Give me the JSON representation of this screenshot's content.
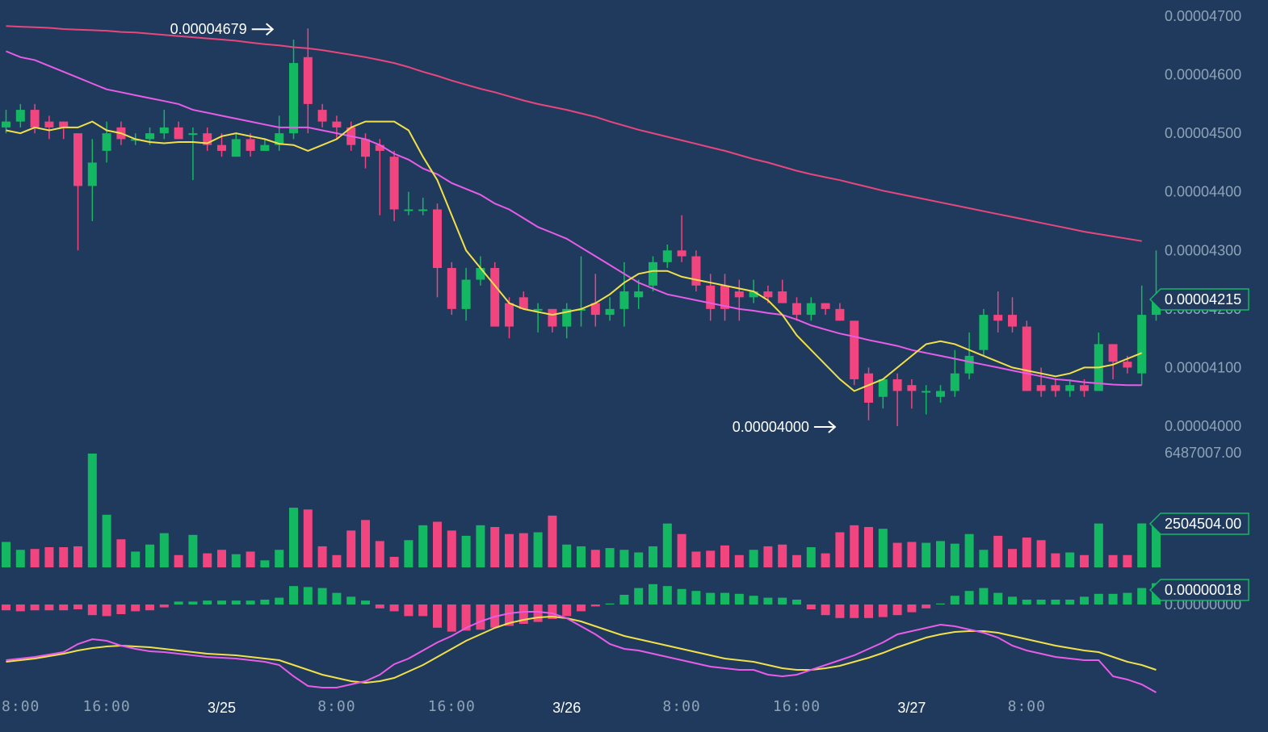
{
  "colors": {
    "background": "#1f3a5c",
    "up": "#14b863",
    "down": "#f0457f",
    "ma_fast": "#f2e04a",
    "ma_mid": "#e95ce8",
    "ma_slow": "#e8467c",
    "axis_text": "#8fa3b8",
    "tag_border": "#14b863",
    "tag_fill": "#1f3a5c",
    "stoch_k": "#e95ce8",
    "stoch_d": "#f2e04a"
  },
  "chart_data": {
    "type": "candlestick",
    "price_axis": {
      "ticks": [
        "0.00004700",
        "0.00004600",
        "0.00004500",
        "0.00004400",
        "0.00004300",
        "0.00004200",
        "0.00004100",
        "0.00004000"
      ],
      "tick_values": [
        4.7e-05,
        4.6e-05,
        4.5e-05,
        4.4e-05,
        4.3e-05,
        4.2e-05,
        4.1e-05,
        4e-05
      ],
      "range": [
        3.99e-05,
        4.72e-05
      ]
    },
    "time_axis": {
      "labels": [
        "8:00",
        "16:00",
        "3/25",
        "8:00",
        "16:00",
        "3/26",
        "8:00",
        "16:00",
        "3/27",
        "8:00"
      ],
      "bold": [
        false,
        false,
        true,
        false,
        false,
        true,
        false,
        false,
        true,
        false
      ],
      "candle_index": [
        -1,
        7,
        15,
        23,
        31,
        39,
        47,
        55,
        63,
        71
      ]
    },
    "annotations": {
      "high": {
        "label": "0.00004679",
        "candle_index": 19,
        "value": 4.679e-05
      },
      "low": {
        "label": "0.00004000",
        "candle_index": 58,
        "value": 4e-05
      }
    },
    "last_price_tag": {
      "label": "0.00004215",
      "value": 4.215e-05
    },
    "volume": {
      "max_label": "6487007.00",
      "max_value": 6487007,
      "last_tag": "2504504.00",
      "last_value": 2504504,
      "values": [
        1450000,
        1000000,
        1050000,
        1150000,
        1150000,
        1200000,
        6487007,
        3000000,
        1600000,
        900000,
        1300000,
        1950000,
        700000,
        1850000,
        800000,
        1000000,
        750000,
        900000,
        400000,
        1000000,
        3400000,
        3300000,
        1200000,
        700000,
        2100000,
        2700000,
        1500000,
        600000,
        1550000,
        2400000,
        2600000,
        2100000,
        1800000,
        2400000,
        2300000,
        1900000,
        1950000,
        2000000,
        2950000,
        1300000,
        1200000,
        1000000,
        1100000,
        1000000,
        850000,
        1200000,
        2500000,
        1900000,
        900000,
        950000,
        1250000,
        700000,
        1000000,
        1200000,
        1300000,
        700000,
        1150000,
        800000,
        2000000,
        2400000,
        2300000,
        2200000,
        1400000,
        1450000,
        1400000,
        1500000,
        1350000,
        1900000,
        1000000,
        1800000,
        1050000,
        1700000,
        1550000,
        800000,
        850000,
        700000,
        2500000,
        700000,
        700000,
        2504504,
        2504504
      ]
    },
    "macd": {
      "tag_label": "0.00000018",
      "tag_value": 1.8e-07,
      "zero_label": "0.00000000",
      "histogram": [
        -0.3,
        -0.35,
        -0.3,
        -0.3,
        -0.3,
        -0.25,
        -0.55,
        -0.6,
        -0.5,
        -0.35,
        -0.3,
        -0.15,
        0.15,
        0.15,
        0.2,
        0.2,
        0.2,
        0.2,
        0.25,
        0.35,
        0.95,
        0.9,
        0.85,
        0.6,
        0.4,
        0.2,
        -0.2,
        -0.35,
        -0.6,
        -0.6,
        -1.2,
        -1.4,
        -1.35,
        -1.3,
        -1.2,
        -1.1,
        -1.0,
        -0.9,
        -0.75,
        -0.6,
        -0.35,
        -0.1,
        0.05,
        0.5,
        0.85,
        1.05,
        0.95,
        0.8,
        0.7,
        0.6,
        0.6,
        0.55,
        0.45,
        0.35,
        0.35,
        0.25,
        -0.25,
        -0.55,
        -0.7,
        -0.7,
        -0.7,
        -0.65,
        -0.55,
        -0.4,
        -0.2,
        0.05,
        0.45,
        0.7,
        0.85,
        0.6,
        0.4,
        0.25,
        0.25,
        0.25,
        0.25,
        0.4,
        0.55,
        0.55,
        0.6,
        0.85,
        1.1
      ]
    },
    "stochastic": {
      "k": [
        40,
        42,
        44,
        47,
        50,
        60,
        66,
        64,
        58,
        54,
        51,
        50,
        48,
        46,
        44,
        43,
        42,
        40,
        38,
        34,
        20,
        8,
        6,
        6,
        10,
        14,
        22,
        35,
        42,
        52,
        62,
        70,
        80,
        88,
        94,
        98,
        100,
        100,
        98,
        92,
        82,
        72,
        60,
        54,
        52,
        48,
        44,
        40,
        36,
        32,
        30,
        28,
        28,
        22,
        20,
        22,
        28,
        34,
        40,
        46,
        54,
        62,
        72,
        76,
        80,
        84,
        82,
        78,
        74,
        68,
        58,
        52,
        48,
        44,
        42,
        40,
        40,
        20,
        16,
        10,
        0
      ],
      "d": [
        38,
        40,
        42,
        45,
        48,
        52,
        55,
        57,
        58,
        57,
        56,
        54,
        52,
        50,
        48,
        47,
        46,
        44,
        42,
        40,
        34,
        28,
        22,
        18,
        14,
        12,
        14,
        18,
        26,
        34,
        44,
        54,
        64,
        72,
        80,
        86,
        90,
        93,
        94,
        92,
        88,
        82,
        76,
        70,
        66,
        62,
        58,
        54,
        50,
        46,
        42,
        40,
        38,
        34,
        30,
        28,
        28,
        30,
        33,
        38,
        43,
        49,
        56,
        62,
        68,
        72,
        75,
        76,
        76,
        74,
        70,
        66,
        62,
        58,
        55,
        52,
        50,
        44,
        38,
        34,
        28
      ]
    },
    "ma_fast": [
      4.505e-05,
      4.5e-05,
      4.51e-05,
      4.505e-05,
      4.51e-05,
      4.51e-05,
      4.52e-05,
      4.505e-05,
      4.5e-05,
      4.49e-05,
      4.485e-05,
      4.483e-05,
      4.485e-05,
      4.485e-05,
      4.483e-05,
      4.495e-05,
      4.5e-05,
      4.495e-05,
      4.49e-05,
      4.482e-05,
      4.48e-05,
      4.47e-05,
      4.48e-05,
      4.49e-05,
      4.51e-05,
      4.52e-05,
      4.52e-05,
      4.52e-05,
      4.505e-05,
      4.46e-05,
      4.42e-05,
      4.36e-05,
      4.3e-05,
      4.27e-05,
      4.24e-05,
      4.21e-05,
      4.2e-05,
      4.195e-05,
      4.19e-05,
      4.195e-05,
      4.2e-05,
      4.21e-05,
      4.225e-05,
      4.245e-05,
      4.26e-05,
      4.265e-05,
      4.265e-05,
      4.255e-05,
      4.25e-05,
      4.245e-05,
      4.24e-05,
      4.235e-05,
      4.23e-05,
      4.215e-05,
      4.19e-05,
      4.155e-05,
      4.13e-05,
      4.105e-05,
      4.08e-05,
      4.06e-05,
      4.07e-05,
      4.08e-05,
      4.1e-05,
      4.12e-05,
      4.14e-05,
      4.145e-05,
      4.14e-05,
      4.13e-05,
      4.12e-05,
      4.11e-05,
      4.1e-05,
      4.095e-05,
      4.09e-05,
      4.085e-05,
      4.09e-05,
      4.1e-05,
      4.1e-05,
      4.105e-05,
      4.115e-05,
      4.125e-05
    ],
    "ma_mid": [
      4.64e-05,
      4.63e-05,
      4.625e-05,
      4.615e-05,
      4.605e-05,
      4.595e-05,
      4.585e-05,
      4.575e-05,
      4.57e-05,
      4.565e-05,
      4.56e-05,
      4.555e-05,
      4.55e-05,
      4.54e-05,
      4.535e-05,
      4.53e-05,
      4.525e-05,
      4.52e-05,
      4.515e-05,
      4.51e-05,
      4.51e-05,
      4.51e-05,
      4.505e-05,
      4.5e-05,
      4.495e-05,
      4.49e-05,
      4.48e-05,
      4.465e-05,
      4.455e-05,
      4.44e-05,
      4.43e-05,
      4.415e-05,
      4.405e-05,
      4.395e-05,
      4.38e-05,
      4.37e-05,
      4.355e-05,
      4.34e-05,
      4.33e-05,
      4.32e-05,
      4.305e-05,
      4.29e-05,
      4.275e-05,
      4.26e-05,
      4.245e-05,
      4.235e-05,
      4.225e-05,
      4.22e-05,
      4.215e-05,
      4.21e-05,
      4.205e-05,
      4.2e-05,
      4.197e-05,
      4.193e-05,
      4.19e-05,
      4.182e-05,
      4.172e-05,
      4.165e-05,
      4.158e-05,
      4.153e-05,
      4.147e-05,
      4.142e-05,
      4.137e-05,
      4.13e-05,
      4.125e-05,
      4.12e-05,
      4.115e-05,
      4.11e-05,
      4.105e-05,
      4.1e-05,
      4.095e-05,
      4.09e-05,
      4.085e-05,
      4.08e-05,
      4.078e-05,
      4.075e-05,
      4.073e-05,
      4.071e-05,
      4.07e-05,
      4.07e-05
    ],
    "ma_slow": [
      4.683e-05,
      4.682e-05,
      4.681e-05,
      4.68e-05,
      4.678e-05,
      4.677e-05,
      4.676e-05,
      4.675e-05,
      4.673e-05,
      4.672e-05,
      4.67e-05,
      4.668e-05,
      4.666e-05,
      4.664e-05,
      4.662e-05,
      4.66e-05,
      4.658e-05,
      4.655e-05,
      4.652e-05,
      4.65e-05,
      4.647e-05,
      4.645e-05,
      4.642e-05,
      4.638e-05,
      4.634e-05,
      4.63e-05,
      4.625e-05,
      4.62e-05,
      4.613e-05,
      4.605e-05,
      4.598e-05,
      4.59e-05,
      4.583e-05,
      4.576e-05,
      4.57e-05,
      4.563e-05,
      4.556e-05,
      4.55e-05,
      4.545e-05,
      4.54e-05,
      4.534e-05,
      4.528e-05,
      4.52e-05,
      4.513e-05,
      4.506e-05,
      4.5e-05,
      4.494e-05,
      4.488e-05,
      4.482e-05,
      4.476e-05,
      4.47e-05,
      4.463e-05,
      4.456e-05,
      4.45e-05,
      4.443e-05,
      4.436e-05,
      4.43e-05,
      4.425e-05,
      4.42e-05,
      4.414e-05,
      4.408e-05,
      4.402e-05,
      4.397e-05,
      4.392e-05,
      4.387e-05,
      4.382e-05,
      4.377e-05,
      4.372e-05,
      4.367e-05,
      4.362e-05,
      4.357e-05,
      4.352e-05,
      4.347e-05,
      4.342e-05,
      4.337e-05,
      4.332e-05,
      4.328e-05,
      4.324e-05,
      4.32e-05,
      4.316e-05
    ],
    "candles": [
      [
        4.51e-05,
        4.52e-05,
        4.54e-05,
        4.5e-05
      ],
      [
        4.52e-05,
        4.54e-05,
        4.55e-05,
        4.51e-05
      ],
      [
        4.54e-05,
        4.51e-05,
        4.55e-05,
        4.5e-05
      ],
      [
        4.52e-05,
        4.51e-05,
        4.53e-05,
        4.49e-05
      ],
      [
        4.52e-05,
        4.51e-05,
        4.52e-05,
        4.49e-05
      ],
      [
        4.5e-05,
        4.41e-05,
        4.5e-05,
        4.3e-05
      ],
      [
        4.41e-05,
        4.45e-05,
        4.49e-05,
        4.35e-05
      ],
      [
        4.47e-05,
        4.5e-05,
        4.52e-05,
        4.45e-05
      ],
      [
        4.51e-05,
        4.49e-05,
        4.52e-05,
        4.48e-05
      ],
      [
        4.49e-05,
        4.49e-05,
        4.5e-05,
        4.48e-05
      ],
      [
        4.49e-05,
        4.5e-05,
        4.51e-05,
        4.48e-05
      ],
      [
        4.5e-05,
        4.51e-05,
        4.54e-05,
        4.49e-05
      ],
      [
        4.51e-05,
        4.49e-05,
        4.52e-05,
        4.49e-05
      ],
      [
        4.5e-05,
        4.5e-05,
        4.51e-05,
        4.42e-05
      ],
      [
        4.5e-05,
        4.48e-05,
        4.51e-05,
        4.47e-05
      ],
      [
        4.48e-05,
        4.47e-05,
        4.5e-05,
        4.46e-05
      ],
      [
        4.46e-05,
        4.49e-05,
        4.5e-05,
        4.46e-05
      ],
      [
        4.49e-05,
        4.47e-05,
        4.5e-05,
        4.46e-05
      ],
      [
        4.47e-05,
        4.48e-05,
        4.49e-05,
        4.47e-05
      ],
      [
        4.48e-05,
        4.5e-05,
        4.53e-05,
        4.47e-05
      ],
      [
        4.5e-05,
        4.62e-05,
        4.66e-05,
        4.49e-05
      ],
      [
        4.63e-05,
        4.55e-05,
        4.679e-05,
        4.5e-05
      ],
      [
        4.54e-05,
        4.52e-05,
        4.55e-05,
        4.51e-05
      ],
      [
        4.52e-05,
        4.51e-05,
        4.53e-05,
        4.49e-05
      ],
      [
        4.51e-05,
        4.48e-05,
        4.52e-05,
        4.47e-05
      ],
      [
        4.49e-05,
        4.46e-05,
        4.5e-05,
        4.44e-05
      ],
      [
        4.48e-05,
        4.47e-05,
        4.49e-05,
        4.36e-05
      ],
      [
        4.46e-05,
        4.37e-05,
        4.47e-05,
        4.35e-05
      ],
      [
        4.37e-05,
        4.37e-05,
        4.4e-05,
        4.36e-05
      ],
      [
        4.37e-05,
        4.37e-05,
        4.39e-05,
        4.36e-05
      ],
      [
        4.37e-05,
        4.27e-05,
        4.38e-05,
        4.22e-05
      ],
      [
        4.27e-05,
        4.2e-05,
        4.28e-05,
        4.19e-05
      ],
      [
        4.2e-05,
        4.25e-05,
        4.27e-05,
        4.18e-05
      ],
      [
        4.25e-05,
        4.27e-05,
        4.29e-05,
        4.24e-05
      ],
      [
        4.27e-05,
        4.17e-05,
        4.28e-05,
        4.17e-05
      ],
      [
        4.21e-05,
        4.17e-05,
        4.22e-05,
        4.15e-05
      ],
      [
        4.22e-05,
        4.2e-05,
        4.23e-05,
        4.2e-05
      ],
      [
        4.2e-05,
        4.2e-05,
        4.21e-05,
        4.16e-05
      ],
      [
        4.2e-05,
        4.17e-05,
        4.2e-05,
        4.16e-05
      ],
      [
        4.17e-05,
        4.2e-05,
        4.21e-05,
        4.15e-05
      ],
      [
        4.2e-05,
        4.2e-05,
        4.29e-05,
        4.17e-05
      ],
      [
        4.21e-05,
        4.19e-05,
        4.26e-05,
        4.17e-05
      ],
      [
        4.19e-05,
        4.2e-05,
        4.22e-05,
        4.18e-05
      ],
      [
        4.2e-05,
        4.23e-05,
        4.28e-05,
        4.17e-05
      ],
      [
        4.22e-05,
        4.23e-05,
        4.25e-05,
        4.2e-05
      ],
      [
        4.24e-05,
        4.28e-05,
        4.29e-05,
        4.23e-05
      ],
      [
        4.28e-05,
        4.3e-05,
        4.31e-05,
        4.27e-05
      ],
      [
        4.3e-05,
        4.29e-05,
        4.36e-05,
        4.28e-05
      ],
      [
        4.29e-05,
        4.24e-05,
        4.3e-05,
        4.23e-05
      ],
      [
        4.24e-05,
        4.2e-05,
        4.26e-05,
        4.18e-05
      ],
      [
        4.24e-05,
        4.2e-05,
        4.26e-05,
        4.18e-05
      ],
      [
        4.23e-05,
        4.22e-05,
        4.25e-05,
        4.18e-05
      ],
      [
        4.22e-05,
        4.23e-05,
        4.25e-05,
        4.21e-05
      ],
      [
        4.23e-05,
        4.22e-05,
        4.24e-05,
        4.21e-05
      ],
      [
        4.23e-05,
        4.21e-05,
        4.25e-05,
        4.21e-05
      ],
      [
        4.21e-05,
        4.19e-05,
        4.22e-05,
        4.18e-05
      ],
      [
        4.19e-05,
        4.21e-05,
        4.22e-05,
        4.18e-05
      ],
      [
        4.21e-05,
        4.2e-05,
        4.21e-05,
        4.19e-05
      ],
      [
        4.2e-05,
        4.18e-05,
        4.21e-05,
        4.18e-05
      ],
      [
        4.18e-05,
        4.08e-05,
        4.18e-05,
        4.07e-05
      ],
      [
        4.09e-05,
        4.04e-05,
        4.1e-05,
        4.01e-05
      ],
      [
        4.05e-05,
        4.08e-05,
        4.08e-05,
        4.03e-05
      ],
      [
        4.08e-05,
        4.06e-05,
        4.09e-05,
        4e-05
      ],
      [
        4.07e-05,
        4.06e-05,
        4.08e-05,
        4.03e-05
      ],
      [
        4.06e-05,
        4.06e-05,
        4.07e-05,
        4.02e-05
      ],
      [
        4.05e-05,
        4.06e-05,
        4.07e-05,
        4.04e-05
      ],
      [
        4.06e-05,
        4.09e-05,
        4.13e-05,
        4.05e-05
      ],
      [
        4.09e-05,
        4.12e-05,
        4.16e-05,
        4.08e-05
      ],
      [
        4.13e-05,
        4.19e-05,
        4.2e-05,
        4.12e-05
      ],
      [
        4.19e-05,
        4.18e-05,
        4.23e-05,
        4.16e-05
      ],
      [
        4.19e-05,
        4.17e-05,
        4.22e-05,
        4.16e-05
      ],
      [
        4.17e-05,
        4.06e-05,
        4.18e-05,
        4.06e-05
      ],
      [
        4.07e-05,
        4.06e-05,
        4.1e-05,
        4.05e-05
      ],
      [
        4.07e-05,
        4.06e-05,
        4.08e-05,
        4.05e-05
      ],
      [
        4.06e-05,
        4.07e-05,
        4.08e-05,
        4.05e-05
      ],
      [
        4.07e-05,
        4.06e-05,
        4.08e-05,
        4.05e-05
      ],
      [
        4.06e-05,
        4.14e-05,
        4.16e-05,
        4.06e-05
      ],
      [
        4.14e-05,
        4.11e-05,
        4.14e-05,
        4.08e-05
      ],
      [
        4.11e-05,
        4.1e-05,
        4.12e-05,
        4.09e-05
      ],
      [
        4.09e-05,
        4.19e-05,
        4.24e-05,
        4.07e-05
      ],
      [
        4.19e-05,
        4.215e-05,
        4.3e-05,
        4.18e-05
      ]
    ]
  }
}
